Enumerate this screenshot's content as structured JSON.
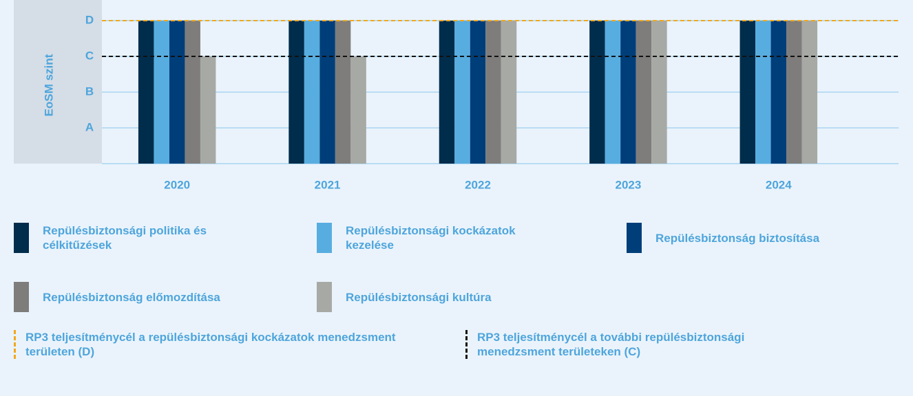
{
  "chart_data": {
    "type": "bar",
    "y_label": "EoSM szint",
    "categories": [
      "2020",
      "2021",
      "2022",
      "2023",
      "2024"
    ],
    "series": [
      {
        "name": "Repülésbiztonsági politika és célkitűzések",
        "color": "#002d4c",
        "values": [
          4,
          4,
          4,
          4,
          4
        ]
      },
      {
        "name": "Repülésbiztonsági kockázatok kezelése",
        "color": "#58ade0",
        "values": [
          4,
          4,
          4,
          4,
          4
        ]
      },
      {
        "name": "Repülésbiztonság biztosítása",
        "color": "#003e7a",
        "values": [
          4,
          4,
          4,
          4,
          4
        ]
      },
      {
        "name": "Repülésbiztonság előmozdítása",
        "color": "#7f7d7b",
        "values": [
          4,
          4,
          4,
          4,
          4
        ]
      },
      {
        "name": "Repülésbiztonsági kultúra",
        "color": "#a7a9a5",
        "values": [
          3,
          3,
          4,
          4,
          4
        ]
      }
    ],
    "ylim": [
      0,
      4
    ],
    "yticks": [
      {
        "value": 1,
        "label": "A"
      },
      {
        "value": 2,
        "label": "B"
      },
      {
        "value": 3,
        "label": "C"
      },
      {
        "value": 4,
        "label": "D"
      }
    ],
    "grid": true,
    "reference_lines": [
      {
        "name": "RP3 teljesítménycél a repülésbiztonsági kockázatok menedzsment területen (D)",
        "value": 4,
        "color": "#f2a81d"
      },
      {
        "name": "RP3 teljesítménycél a további repülésbiztonsági menedzsment területeken (C)",
        "value": 3,
        "color": "#111111"
      }
    ]
  }
}
